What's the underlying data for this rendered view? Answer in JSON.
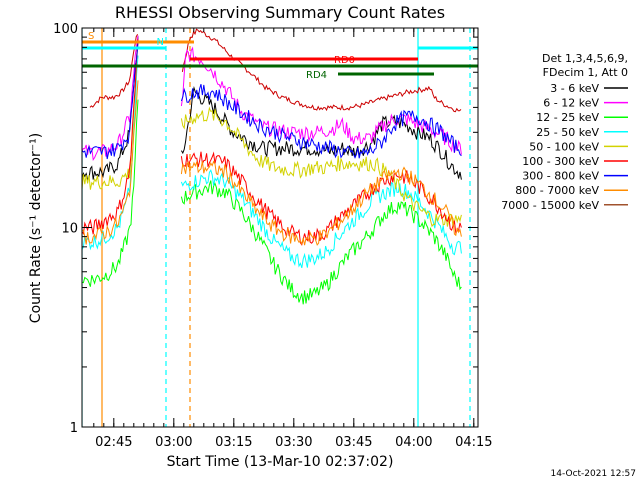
{
  "chart_data": {
    "type": "line",
    "title": "RHESSI Observing Summary Count Rates",
    "xlabel": "Start Time (13-Mar-10 02:37:02)",
    "ylabel": "Count Rate (s⁻¹ detector⁻¹)",
    "yscale": "log",
    "ylim": [
      1,
      100
    ],
    "xlim_minutes": [
      0,
      99
    ],
    "x_ticks": [
      "02:45",
      "03:00",
      "03:15",
      "03:30",
      "03:45",
      "04:00",
      "04:15"
    ],
    "y_ticks": [
      "1",
      "10",
      "100"
    ],
    "legend_header": [
      "Det 1,3,4,5,6,9,",
      "FDecim 1, Att 0"
    ],
    "legend_position": "right",
    "timestamp": "14-Oct-2021 12:57",
    "series": [
      {
        "name": "3 - 6 keV",
        "color": "#000000",
        "x": [
          0,
          6,
          9,
          12,
          13,
          14,
          25,
          28,
          33,
          38,
          45,
          52,
          58,
          62,
          65,
          68,
          72,
          75,
          78,
          81,
          84,
          87,
          90,
          92,
          94,
          95
        ],
        "y": [
          19,
          19,
          21,
          30,
          55,
          88,
          22,
          48,
          40,
          30,
          25,
          25,
          25,
          24,
          25,
          24,
          26,
          33,
          34,
          33,
          30,
          28,
          24,
          21,
          19,
          19
        ]
      },
      {
        "name": "6 - 12 keV",
        "color": "#ff00ff",
        "x": [
          0,
          6,
          9,
          12,
          13,
          14,
          25,
          26,
          30,
          33,
          36,
          40,
          45,
          52,
          58,
          62,
          65,
          68,
          72,
          75,
          78,
          81,
          84,
          87,
          90,
          92,
          94,
          95
        ],
        "y": [
          24,
          24,
          26,
          36,
          60,
          95,
          38,
          75,
          70,
          60,
          50,
          38,
          32,
          30,
          30,
          31,
          33,
          28,
          28,
          32,
          35,
          35,
          33,
          31,
          29,
          27,
          25,
          25
        ]
      },
      {
        "name": "12 - 25 keV",
        "color": "#00ff00",
        "x": [
          0,
          3,
          6,
          9,
          11,
          12,
          13,
          14,
          25,
          28,
          32,
          36,
          40,
          44,
          48,
          52,
          55,
          58,
          61,
          64,
          67,
          70,
          73,
          76,
          79,
          82,
          85,
          88,
          91,
          93,
          95
        ],
        "y": [
          5.5,
          5.5,
          5.8,
          6.5,
          8.5,
          10,
          16,
          45,
          14,
          15,
          16,
          15,
          12,
          9,
          6.5,
          5,
          4.5,
          4.6,
          5.1,
          6.2,
          7.4,
          8.5,
          10,
          12,
          13,
          12,
          10.5,
          9,
          7.2,
          5.7,
          5
        ]
      },
      {
        "name": "25 - 50 keV",
        "color": "#00ffff",
        "x": [
          0,
          3,
          6,
          9,
          11,
          12,
          13,
          14,
          25,
          28,
          32,
          36,
          40,
          44,
          48,
          52,
          55,
          58,
          61,
          64,
          67,
          70,
          73,
          76,
          79,
          82,
          85,
          88,
          91,
          93,
          95
        ],
        "y": [
          8.5,
          8.5,
          9,
          10,
          13,
          16,
          30,
          75,
          16,
          17,
          18,
          17,
          14,
          11,
          8.5,
          7.2,
          6.8,
          7,
          7.6,
          9,
          10.5,
          12,
          14,
          15,
          16,
          15,
          13,
          11,
          9,
          8,
          8
        ]
      },
      {
        "name": "50 - 100 keV",
        "color": "#d2d200",
        "x": [
          0,
          6,
          9,
          12,
          13,
          14,
          25,
          28,
          32,
          36,
          40,
          44,
          48,
          52,
          55,
          58,
          61,
          64,
          67,
          70,
          73,
          76,
          79,
          82,
          85,
          88,
          91,
          93,
          95
        ],
        "y": [
          17,
          17,
          17,
          19,
          40,
          80,
          33,
          36,
          37,
          34,
          27,
          22,
          20,
          19.5,
          19.5,
          20,
          20,
          21,
          21,
          21,
          21,
          19,
          16,
          13.5,
          12,
          11,
          11,
          11,
          11
        ]
      },
      {
        "name": "100 - 300 keV",
        "color": "#ff0000",
        "x": [
          0,
          3,
          6,
          9,
          11,
          12,
          13,
          14,
          25,
          28,
          32,
          36,
          40,
          44,
          48,
          52,
          55,
          58,
          61,
          64,
          67,
          70,
          73,
          76,
          79,
          82,
          85,
          88,
          91,
          93,
          95
        ],
        "y": [
          10,
          10,
          11,
          12,
          16,
          20,
          40,
          88,
          22,
          22,
          22,
          21,
          17,
          13.5,
          11,
          9.5,
          9,
          9,
          9.5,
          11,
          12.5,
          14,
          16,
          17.5,
          18.5,
          17.5,
          15.5,
          13.5,
          11.5,
          10,
          10
        ]
      },
      {
        "name": "300 - 800 keV",
        "color": "#0000ff",
        "x": [
          0,
          6,
          9,
          12,
          13,
          14,
          25,
          28,
          33,
          38,
          45,
          52,
          58,
          62,
          65,
          68,
          72,
          75,
          78,
          81,
          84,
          87,
          90,
          92,
          94,
          95
        ],
        "y": [
          24,
          24,
          25,
          30,
          55,
          90,
          45,
          48,
          48,
          40,
          32,
          28,
          26,
          25,
          24,
          23,
          24,
          27,
          33,
          36,
          36,
          33,
          30,
          27,
          25,
          25
        ]
      },
      {
        "name": "800 - 7000 keV",
        "color": "#ff8c00",
        "x": [
          0,
          3,
          6,
          9,
          11,
          12,
          13,
          14,
          25,
          28,
          32,
          36,
          40,
          44,
          48,
          52,
          55,
          58,
          61,
          64,
          67,
          70,
          73,
          76,
          79,
          82,
          85,
          88,
          91,
          93,
          95
        ],
        "y": [
          9,
          9,
          9.5,
          10.5,
          13,
          16,
          28,
          60,
          20,
          20,
          20,
          19,
          15,
          12,
          10,
          9,
          8.7,
          8.8,
          9.2,
          10.5,
          12,
          14,
          16,
          18,
          19,
          18,
          16,
          14,
          12,
          10,
          9
        ]
      },
      {
        "name": "7000 - 15000 keV",
        "color": "#a0522d",
        "x": [],
        "y": []
      }
    ],
    "background_curve": {
      "color": "#cc0000",
      "x": [
        2,
        5,
        8,
        10,
        12,
        13,
        14,
        25,
        27,
        29,
        33,
        38,
        42,
        46,
        50,
        54,
        58,
        61,
        64,
        67,
        70,
        75,
        82,
        87,
        88,
        90,
        92,
        95
      ],
      "y": [
        40,
        45,
        45,
        48,
        55,
        80,
        95,
        60,
        90,
        98,
        88,
        70,
        60,
        50,
        45,
        42,
        40,
        40,
        40,
        40,
        41,
        44,
        48,
        50,
        45,
        42,
        40,
        38
      ]
    },
    "flags": [
      {
        "label": "S",
        "color": "#ff8c00",
        "start": 0,
        "end": 28
      },
      {
        "label": "N",
        "color": "#00ffff",
        "start": 0,
        "end": 21
      },
      {
        "label": "",
        "color": "#00ffff",
        "start": 84,
        "end": 99
      },
      {
        "label": "RD0",
        "color": "#ff0000",
        "start": 27,
        "end": 84
      },
      {
        "label": "",
        "color": "#006400",
        "start": 0,
        "end": 99
      },
      {
        "label": "RD4",
        "color": "#006400",
        "start": 64,
        "end": 88
      }
    ],
    "vertical_markers": [
      {
        "x": 0,
        "color": "#00ffff",
        "style": "solid"
      },
      {
        "x": 5,
        "color": "#ff8c00",
        "style": "solid"
      },
      {
        "x": 21,
        "color": "#00ffff",
        "style": "dashed"
      },
      {
        "x": 27,
        "color": "#ff8c00",
        "style": "dashed"
      },
      {
        "x": 84,
        "color": "#00ffff",
        "style": "solid"
      },
      {
        "x": 97,
        "color": "#00ffff",
        "style": "dashed"
      }
    ],
    "grid": false
  }
}
